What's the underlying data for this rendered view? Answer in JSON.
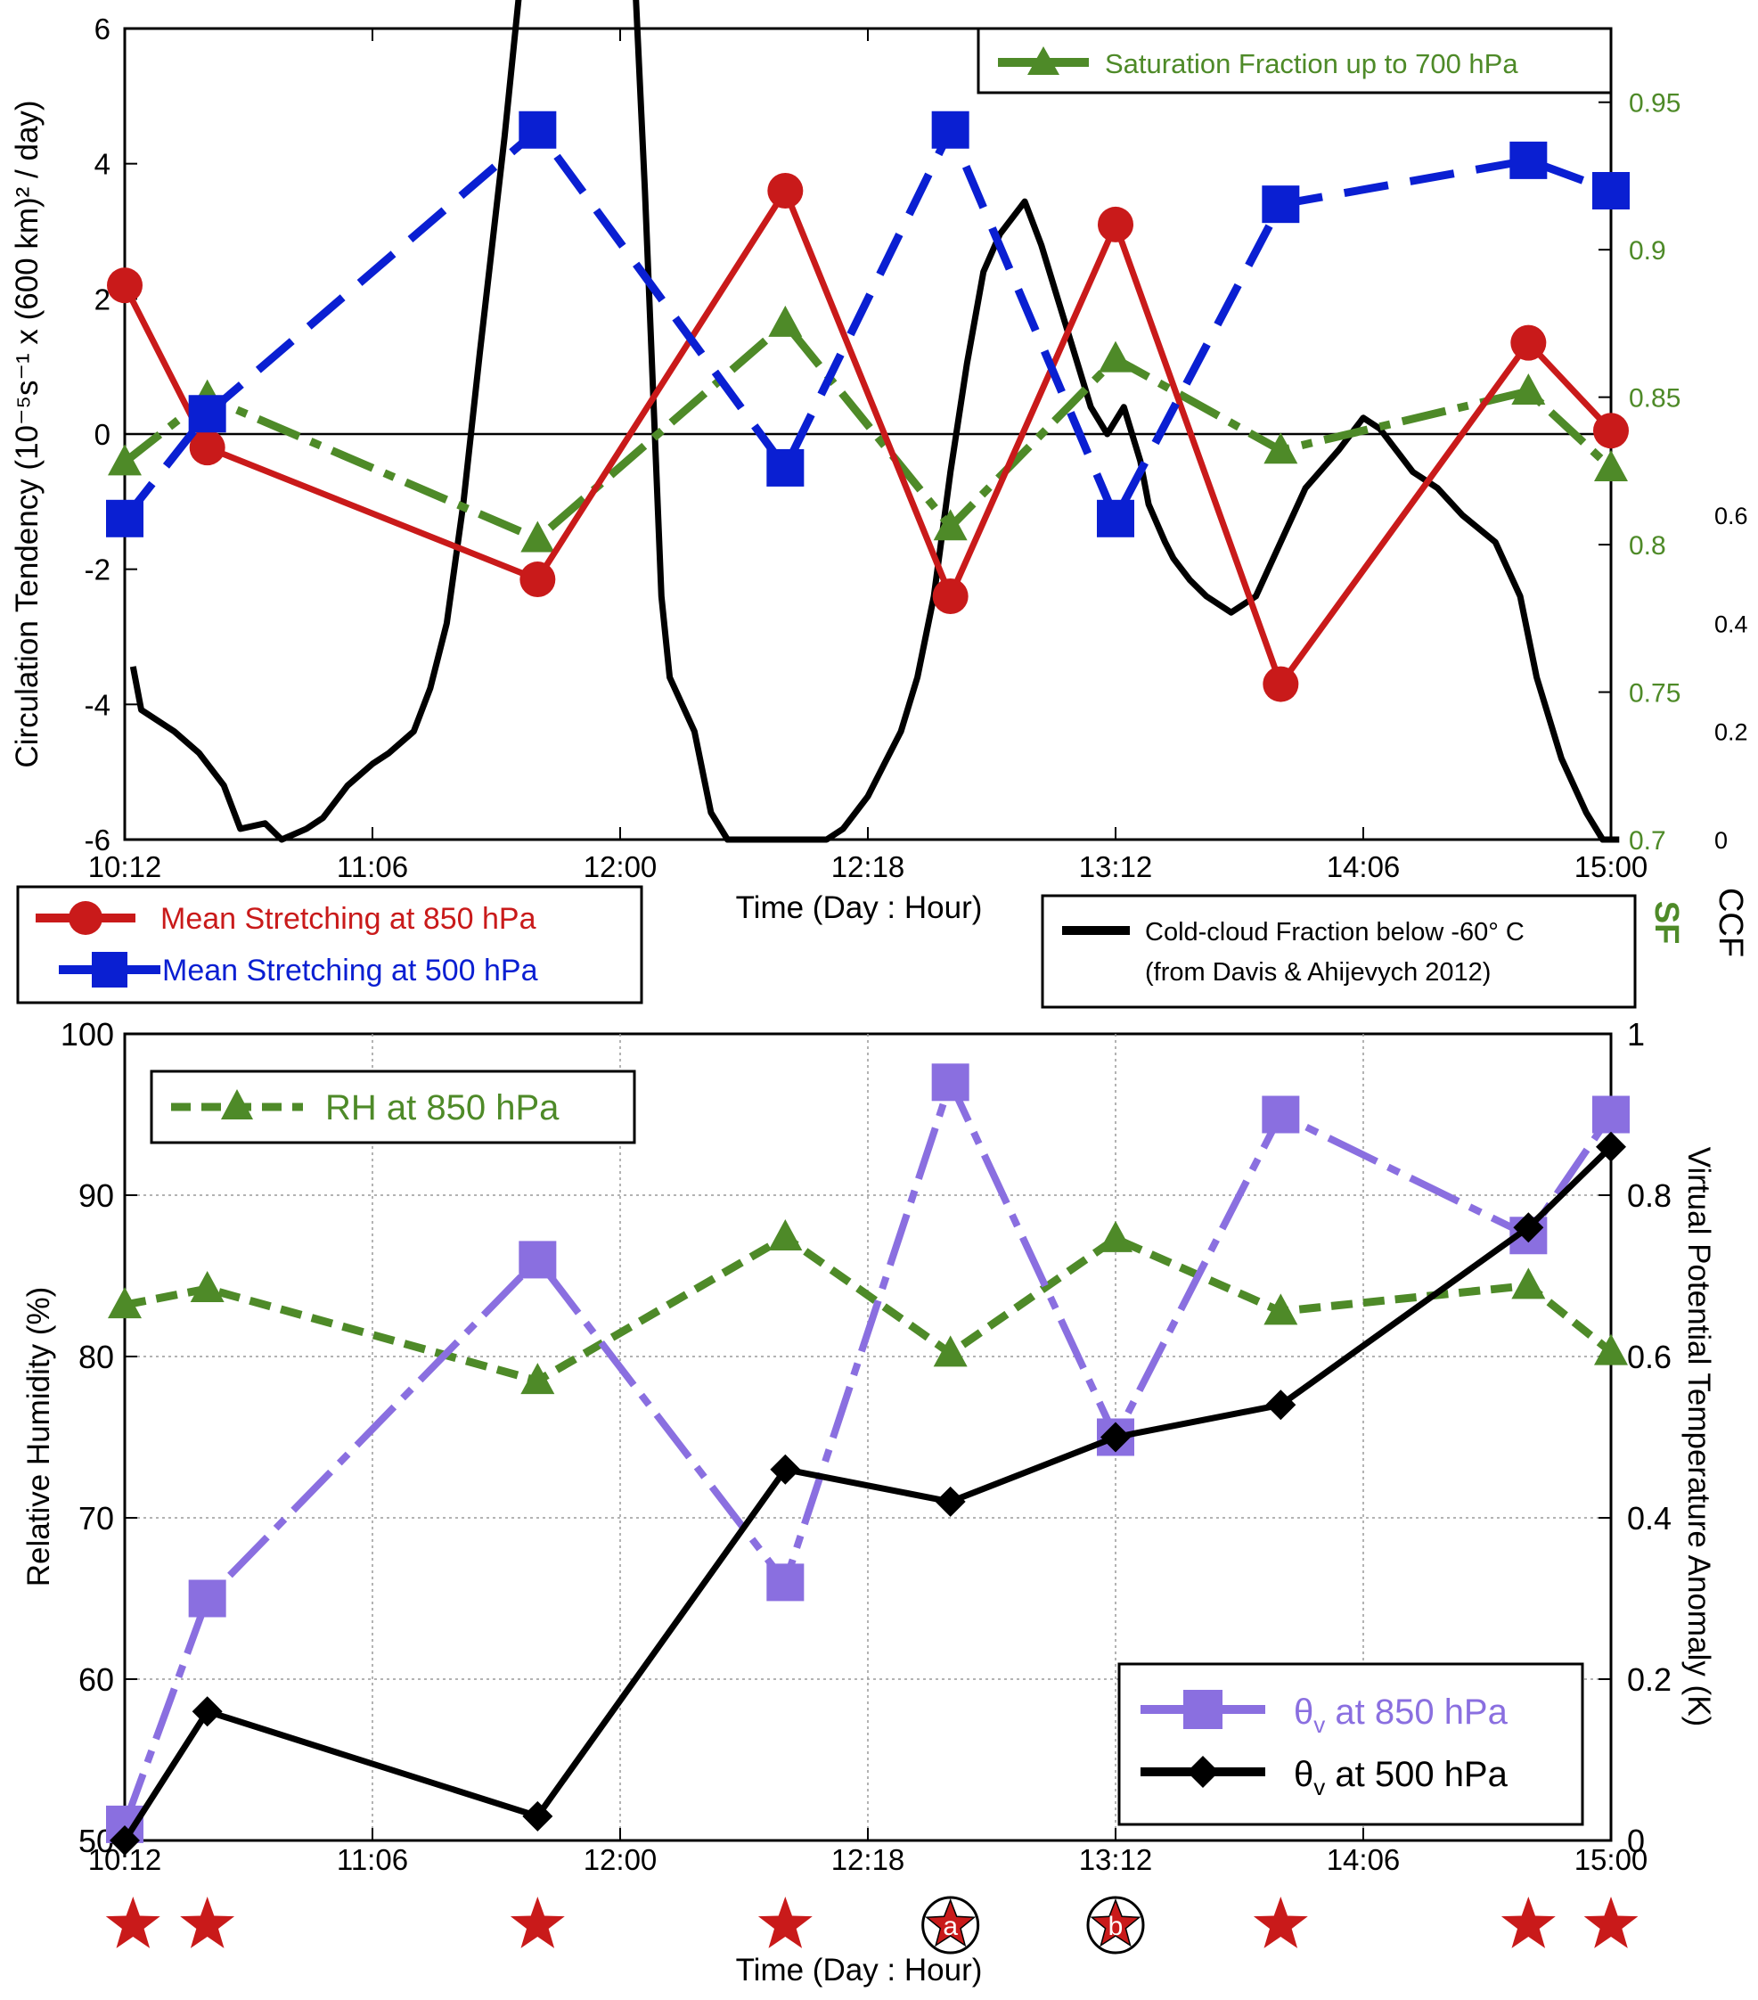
{
  "colors": {
    "red": "#c91a1a",
    "blue": "#0a1fd2",
    "green": "#4e8a28",
    "purple": "#8a6fe0",
    "black": "#000000",
    "star": "#c91a1a"
  },
  "chart_data": [
    {
      "type": "line",
      "panel": "top",
      "x_ticks": [
        "10:12",
        "11:06",
        "12:00",
        "12:18",
        "13:12",
        "14:06",
        "15:00"
      ],
      "xlabel": "Time (Day : Hour)",
      "ylabel_left": "Circulation Tendency (10⁻⁵s⁻¹ x (600 km)² / day)",
      "ylim_left": [
        -6,
        6
      ],
      "yticks_left": [
        "6",
        "4",
        "2",
        "0",
        "-2",
        "-4",
        "-6"
      ],
      "ylabel_sf": "SF",
      "ylim_sf": [
        0.7,
        0.975
      ],
      "yticks_sf": [
        "0.95",
        "0.9",
        "0.85",
        "0.8",
        "0.75",
        "0.7"
      ],
      "ylabel_ccf": "CCF",
      "ylim_ccf": [
        0,
        1.5
      ],
      "yticks_ccf": [
        "0.6",
        "0.4",
        "0.2",
        "0"
      ],
      "zero_line": true,
      "series": [
        {
          "name": "Mean Stretching at 850 hPa",
          "color": "red",
          "axis": "left",
          "marker": "circle",
          "x": [
            0,
            0.5,
            2.5,
            4,
            5,
            6,
            7,
            8.5,
            9
          ],
          "y": [
            2.2,
            -0.2,
            -2.15,
            3.6,
            -2.4,
            3.1,
            -3.7,
            1.35,
            0.05
          ]
        },
        {
          "name": "Mean Stretching at 500 hPa",
          "color": "blue",
          "axis": "left",
          "marker": "square",
          "x": [
            0,
            0.5,
            2.5,
            4,
            5,
            6,
            7,
            8.5,
            9
          ],
          "y": [
            -1.25,
            0.3,
            4.5,
            -0.5,
            4.5,
            -1.25,
            3.4,
            4.05,
            3.6
          ]
        },
        {
          "name": "Saturation Fraction up to 700 hPa",
          "color": "green",
          "axis": "sf",
          "marker": "triangle",
          "x": [
            0,
            0.5,
            2.5,
            4,
            5,
            6,
            7,
            8.5,
            9
          ],
          "y": [
            0.828,
            0.85,
            0.802,
            0.875,
            0.806,
            0.863,
            0.832,
            0.852,
            0.826
          ]
        },
        {
          "name": "Cold-cloud Fraction below -60° C",
          "color": "black",
          "axis": "ccf",
          "marker": "none",
          "x": [
            0.05,
            0.1,
            0.3,
            0.45,
            0.6,
            0.7,
            0.85,
            0.95,
            1.1,
            1.2,
            1.35,
            1.5,
            1.6,
            1.75,
            1.85,
            1.95,
            2.05,
            2.15,
            2.3,
            2.4,
            2.55,
            2.7,
            2.85,
            3.0,
            3.05,
            3.15,
            3.25,
            3.3,
            3.45,
            3.55,
            3.65,
            3.75,
            3.85,
            3.95,
            4.05,
            4.1,
            4.15,
            4.25,
            4.35,
            4.4,
            4.5,
            4.6,
            4.7,
            4.8,
            4.9,
            5.0,
            5.1,
            5.2,
            5.3,
            5.45,
            5.55,
            5.65,
            5.75,
            5.85,
            5.95,
            6.05,
            6.15,
            6.2,
            6.3,
            6.35,
            6.45,
            6.55,
            6.7,
            6.85,
            7.0,
            7.15,
            7.35,
            7.5,
            7.6,
            7.7,
            7.8,
            7.95,
            8.1,
            8.3,
            8.45,
            8.55,
            8.7,
            8.85,
            8.95,
            9.0,
            9.05
          ],
          "y": [
            0.32,
            0.24,
            0.2,
            0.16,
            0.1,
            0.02,
            0.03,
            0.0,
            0.02,
            0.04,
            0.1,
            0.14,
            0.16,
            0.2,
            0.28,
            0.4,
            0.62,
            0.9,
            1.3,
            1.6,
            1.9,
            2.12,
            2.2,
            2.12,
            1.85,
            1.2,
            0.45,
            0.3,
            0.2,
            0.05,
            0.0,
            0.0,
            0.0,
            0.0,
            0.0,
            0.0,
            0.0,
            0.0,
            0.02,
            0.04,
            0.08,
            0.14,
            0.2,
            0.3,
            0.45,
            0.68,
            0.88,
            1.05,
            1.12,
            1.18,
            1.1,
            1.0,
            0.9,
            0.8,
            0.75,
            0.8,
            0.7,
            0.62,
            0.55,
            0.52,
            0.48,
            0.45,
            0.42,
            0.45,
            0.55,
            0.65,
            0.72,
            0.78,
            0.76,
            0.72,
            0.68,
            0.65,
            0.6,
            0.55,
            0.45,
            0.3,
            0.15,
            0.05,
            0.0,
            0.0,
            0.0
          ]
        }
      ]
    },
    {
      "type": "line",
      "panel": "bottom",
      "x_ticks": [
        "10:12",
        "11:06",
        "12:00",
        "12:18",
        "13:12",
        "14:06",
        "15:00"
      ],
      "xlabel": "Time (Day : Hour)",
      "ylabel_left": "Relative Humidity (%)",
      "ylim_left": [
        50,
        100
      ],
      "yticks_left": [
        "100",
        "90",
        "80",
        "70",
        "60",
        "50"
      ],
      "ylabel_right": "Virtual Potential Temperature Anomaly (K)",
      "ylim_right": [
        0,
        1
      ],
      "yticks_right": [
        "1",
        "0.8",
        "0.6",
        "0.4",
        "0.2",
        "0"
      ],
      "grid": true,
      "series": [
        {
          "name": "RH at 850 hPa",
          "color": "green",
          "axis": "left",
          "marker": "triangle",
          "x": [
            0,
            0.5,
            2.5,
            4,
            5,
            6,
            7,
            8.5,
            9
          ],
          "y": [
            83.2,
            84.2,
            78.5,
            87.4,
            80.2,
            87.3,
            82.8,
            84.4,
            80.3
          ]
        },
        {
          "name": "θv at 850 hPa",
          "color": "purple",
          "axis": "right",
          "marker": "square",
          "x": [
            0,
            0.5,
            2.5,
            4,
            5,
            6,
            7,
            8.5,
            9
          ],
          "y": [
            0.02,
            0.3,
            0.72,
            0.32,
            0.94,
            0.5,
            0.9,
            0.75,
            0.9
          ]
        },
        {
          "name": "θv at 500 hPa",
          "color": "black",
          "axis": "right",
          "marker": "diamond",
          "x": [
            0,
            0.5,
            2.5,
            4,
            5,
            6,
            7,
            8.5,
            9
          ],
          "y": [
            0.0,
            0.16,
            0.03,
            0.46,
            0.42,
            0.5,
            0.54,
            0.76,
            0.86
          ]
        }
      ],
      "star_markers": [
        {
          "x": 0.05,
          "label": ""
        },
        {
          "x": 0.5,
          "label": ""
        },
        {
          "x": 2.5,
          "label": ""
        },
        {
          "x": 4,
          "label": ""
        },
        {
          "x": 5,
          "label": "a"
        },
        {
          "x": 6,
          "label": "b"
        },
        {
          "x": 7,
          "label": ""
        },
        {
          "x": 8.5,
          "label": ""
        },
        {
          "x": 9,
          "label": ""
        }
      ]
    }
  ],
  "legends": {
    "sf": "Saturation Fraction up to 700 hPa",
    "s850": "Mean Stretching at 850 hPa",
    "s500": "Mean Stretching at 500 hPa",
    "ccf_line1": "Cold-cloud Fraction below -60° C",
    "ccf_line2": "(from Davis & Ahijevych 2012)",
    "rh": "RH at 850 hPa",
    "theta_symbol": "θ",
    "theta_sub": "v",
    "theta850_rest": " at 850 hPa",
    "theta500_rest": " at 500 hPa"
  }
}
